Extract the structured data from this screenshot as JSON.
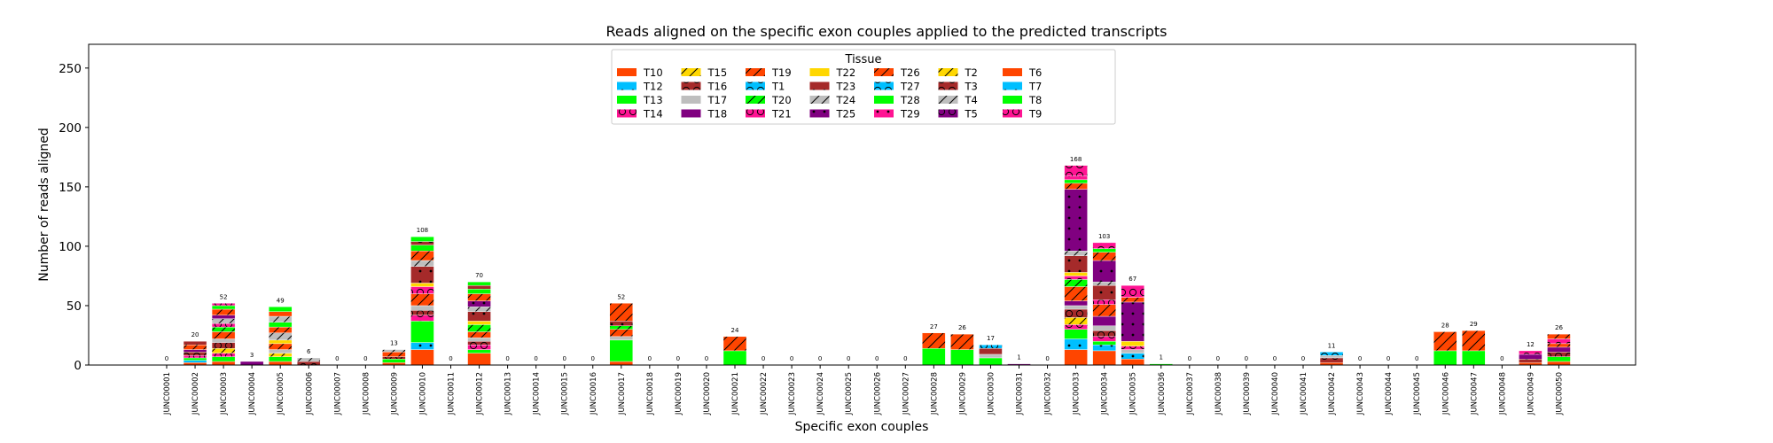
{
  "chart_data": {
    "type": "bar",
    "stacked": true,
    "title": "Reads aligned on the specific exon couples applied to the predicted transcripts",
    "xlabel": "Specific exon couples",
    "ylabel": "Number of reads aligned",
    "ylim": [
      0,
      270
    ],
    "yticks": [
      0,
      50,
      100,
      150,
      200,
      250
    ],
    "grid": false,
    "legend": {
      "title": "Tissue",
      "placement": "top-center",
      "entries": [
        {
          "label": "T10",
          "color": "#FF4500",
          "hatch": "none"
        },
        {
          "label": "T12",
          "color": "#00BFFF",
          "hatch": "dots"
        },
        {
          "label": "T13",
          "color": "#00FF00",
          "hatch": "none"
        },
        {
          "label": "T14",
          "color": "#FF1493",
          "hatch": "circles"
        },
        {
          "label": "T15",
          "color": "#FFD700",
          "hatch": "diag"
        },
        {
          "label": "T16",
          "color": "#A52A2A",
          "hatch": "circles"
        },
        {
          "label": "T17",
          "color": "#BEBEBE",
          "hatch": "none"
        },
        {
          "label": "T18",
          "color": "#800080",
          "hatch": "none"
        },
        {
          "label": "T19",
          "color": "#FF4500",
          "hatch": "diag"
        },
        {
          "label": "T1",
          "color": "#00BFFF",
          "hatch": "circles"
        },
        {
          "label": "T20",
          "color": "#00FF00",
          "hatch": "diag"
        },
        {
          "label": "T21",
          "color": "#FF1493",
          "hatch": "circles"
        },
        {
          "label": "T22",
          "color": "#FFD700",
          "hatch": "none"
        },
        {
          "label": "T23",
          "color": "#A52A2A",
          "hatch": "dots"
        },
        {
          "label": "T24",
          "color": "#BEBEBE",
          "hatch": "diag"
        },
        {
          "label": "T25",
          "color": "#800080",
          "hatch": "dots"
        },
        {
          "label": "T26",
          "color": "#FF4500",
          "hatch": "diag"
        },
        {
          "label": "T27",
          "color": "#00BFFF",
          "hatch": "circles"
        },
        {
          "label": "T28",
          "color": "#00FF00",
          "hatch": "none"
        },
        {
          "label": "T29",
          "color": "#FF1493",
          "hatch": "dots"
        },
        {
          "label": "T2",
          "color": "#FFD700",
          "hatch": "diag"
        },
        {
          "label": "T3",
          "color": "#A52A2A",
          "hatch": "circles"
        },
        {
          "label": "T4",
          "color": "#BEBEBE",
          "hatch": "diag"
        },
        {
          "label": "T5",
          "color": "#800080",
          "hatch": "circles"
        },
        {
          "label": "T6",
          "color": "#FF4500",
          "hatch": "none"
        },
        {
          "label": "T7",
          "color": "#00BFFF",
          "hatch": "dots"
        },
        {
          "label": "T8",
          "color": "#00FF00",
          "hatch": "none"
        },
        {
          "label": "T9",
          "color": "#FF1493",
          "hatch": "circles"
        }
      ]
    },
    "categories": [
      "JUNC00001",
      "JUNC00002",
      "JUNC00003",
      "JUNC00004",
      "JUNC00005",
      "JUNC00006",
      "JUNC00007",
      "JUNC00008",
      "JUNC00009",
      "JUNC00010",
      "JUNC00011",
      "JUNC00012",
      "JUNC00013",
      "JUNC00014",
      "JUNC00015",
      "JUNC00016",
      "JUNC00017",
      "JUNC00018",
      "JUNC00019",
      "JUNC00020",
      "JUNC00021",
      "JUNC00022",
      "JUNC00023",
      "JUNC00024",
      "JUNC00025",
      "JUNC00026",
      "JUNC00027",
      "JUNC00028",
      "JUNC00029",
      "JUNC00030",
      "JUNC00031",
      "JUNC00032",
      "JUNC00033",
      "JUNC00034",
      "JUNC00035",
      "JUNC00036",
      "JUNC00037",
      "JUNC00038",
      "JUNC00039",
      "JUNC00040",
      "JUNC00041",
      "JUNC00042",
      "JUNC00043",
      "JUNC00044",
      "JUNC00045",
      "JUNC00046",
      "JUNC00047",
      "JUNC00048",
      "JUNC00049",
      "JUNC00050"
    ],
    "totals": [
      0,
      20,
      52,
      3,
      49,
      6,
      0,
      0,
      13,
      108,
      0,
      70,
      0,
      0,
      0,
      0,
      52,
      0,
      0,
      0,
      24,
      0,
      0,
      0,
      0,
      0,
      0,
      27,
      26,
      17,
      1,
      0,
      168,
      103,
      67,
      1,
      0,
      0,
      0,
      0,
      0,
      11,
      0,
      0,
      0,
      28,
      29,
      0,
      12,
      26
    ],
    "stacks": [
      [],
      [
        [
          "T10",
          2
        ],
        [
          "T12",
          2
        ],
        [
          "T13",
          2
        ],
        [
          "T14",
          2
        ],
        [
          "T16",
          3
        ],
        [
          "T18",
          2
        ],
        [
          "T19",
          4
        ],
        [
          "T23",
          3
        ]
      ],
      [
        [
          "T10",
          3
        ],
        [
          "T13",
          4
        ],
        [
          "T14",
          3
        ],
        [
          "T15",
          4
        ],
        [
          "T16",
          5
        ],
        [
          "T17",
          3
        ],
        [
          "T19",
          6
        ],
        [
          "T20",
          4
        ],
        [
          "T21",
          3
        ],
        [
          "T24",
          4
        ],
        [
          "T25",
          3
        ],
        [
          "T26",
          5
        ],
        [
          "T28",
          3
        ],
        [
          "T9",
          2
        ]
      ],
      [
        [
          "T18",
          3
        ]
      ],
      [
        [
          "T10",
          3
        ],
        [
          "T13",
          4
        ],
        [
          "T15",
          3
        ],
        [
          "T17",
          3
        ],
        [
          "T19",
          5
        ],
        [
          "T22",
          3
        ],
        [
          "T24",
          6
        ],
        [
          "T26",
          5
        ],
        [
          "T28",
          4
        ],
        [
          "T4",
          5
        ],
        [
          "T6",
          4
        ],
        [
          "T8",
          4
        ]
      ],
      [
        [
          "T16",
          3
        ],
        [
          "T24",
          3
        ]
      ],
      [],
      [],
      [
        [
          "T10",
          2
        ],
        [
          "T13",
          3
        ],
        [
          "T16",
          2
        ],
        [
          "T19",
          4
        ],
        [
          "T24",
          2
        ]
      ],
      [
        [
          "T10",
          13
        ],
        [
          "T12",
          6
        ],
        [
          "T13",
          18
        ],
        [
          "T14",
          5
        ],
        [
          "T16",
          4
        ],
        [
          "T17",
          4
        ],
        [
          "T19",
          10
        ],
        [
          "T21",
          6
        ],
        [
          "T22",
          3
        ],
        [
          "T23",
          14
        ],
        [
          "T24",
          5
        ],
        [
          "T26",
          8
        ],
        [
          "T28",
          5
        ],
        [
          "T3",
          3
        ],
        [
          "T8",
          4
        ]
      ],
      [],
      [
        [
          "T10",
          10
        ],
        [
          "T13",
          3
        ],
        [
          "T14",
          4
        ],
        [
          "T16",
          3
        ],
        [
          "T17",
          3
        ],
        [
          "T19",
          5
        ],
        [
          "T20",
          6
        ],
        [
          "T22",
          3
        ],
        [
          "T23",
          8
        ],
        [
          "T24",
          4
        ],
        [
          "T25",
          5
        ],
        [
          "T26",
          6
        ],
        [
          "T28",
          4
        ],
        [
          "T3",
          3
        ],
        [
          "T8",
          3
        ]
      ],
      [],
      [],
      [],
      [],
      [
        [
          "T10",
          3
        ],
        [
          "T13",
          18
        ],
        [
          "T17",
          3
        ],
        [
          "T19",
          6
        ],
        [
          "T20",
          3
        ],
        [
          "T23",
          4
        ],
        [
          "T26",
          15
        ]
      ],
      [],
      [],
      [],
      [
        [
          "T13",
          12
        ],
        [
          "T26",
          12
        ]
      ],
      [],
      [],
      [],
      [],
      [],
      [],
      [
        [
          "T13",
          14
        ],
        [
          "T26",
          13
        ]
      ],
      [
        [
          "T13",
          13
        ],
        [
          "T26",
          13
        ]
      ],
      [
        [
          "T13",
          6
        ],
        [
          "T17",
          3
        ],
        [
          "T23",
          5
        ],
        [
          "T27",
          3
        ]
      ],
      [
        [
          "T18",
          1
        ]
      ],
      [],
      [
        [
          "T10",
          13
        ],
        [
          "T12",
          9
        ],
        [
          "T13",
          8
        ],
        [
          "T14",
          4
        ],
        [
          "T15",
          6
        ],
        [
          "T16",
          7
        ],
        [
          "T17",
          3
        ],
        [
          "T18",
          4
        ],
        [
          "T19",
          12
        ],
        [
          "T20",
          6
        ],
        [
          "T21",
          3
        ],
        [
          "T22",
          3
        ],
        [
          "T23",
          14
        ],
        [
          "T24",
          4
        ],
        [
          "T25",
          52
        ],
        [
          "T26",
          5
        ],
        [
          "T28",
          3
        ],
        [
          "T29",
          3
        ],
        [
          "T9",
          9
        ]
      ],
      [
        [
          "T10",
          12
        ],
        [
          "T12",
          5
        ],
        [
          "T13",
          3
        ],
        [
          "T14",
          4
        ],
        [
          "T16",
          5
        ],
        [
          "T17",
          4
        ],
        [
          "T18",
          8
        ],
        [
          "T19",
          10
        ],
        [
          "T21",
          4
        ],
        [
          "T23",
          12
        ],
        [
          "T24",
          3
        ],
        [
          "T25",
          18
        ],
        [
          "T26",
          7
        ],
        [
          "T28",
          3
        ],
        [
          "T9",
          5
        ]
      ],
      [
        [
          "T10",
          5
        ],
        [
          "T12",
          5
        ],
        [
          "T17",
          3
        ],
        [
          "T21",
          3
        ],
        [
          "T22",
          4
        ],
        [
          "T25",
          33
        ],
        [
          "T26",
          4
        ],
        [
          "T9",
          10
        ]
      ],
      [
        [
          "T13",
          1
        ]
      ],
      [],
      [],
      [],
      [],
      [],
      [
        [
          "T10",
          2
        ],
        [
          "T16",
          4
        ],
        [
          "T17",
          2
        ],
        [
          "T27",
          3
        ]
      ],
      [],
      [],
      [],
      [
        [
          "T13",
          12
        ],
        [
          "T26",
          16
        ]
      ],
      [
        [
          "T13",
          12
        ],
        [
          "T26",
          17
        ]
      ],
      [],
      [
        [
          "T10",
          2
        ],
        [
          "T16",
          3
        ],
        [
          "T18",
          4
        ],
        [
          "T9",
          3
        ]
      ],
      [
        [
          "T10",
          3
        ],
        [
          "T13",
          4
        ],
        [
          "T16",
          4
        ],
        [
          "T18",
          4
        ],
        [
          "T19",
          3
        ],
        [
          "T21",
          4
        ],
        [
          "T26",
          4
        ]
      ]
    ]
  }
}
